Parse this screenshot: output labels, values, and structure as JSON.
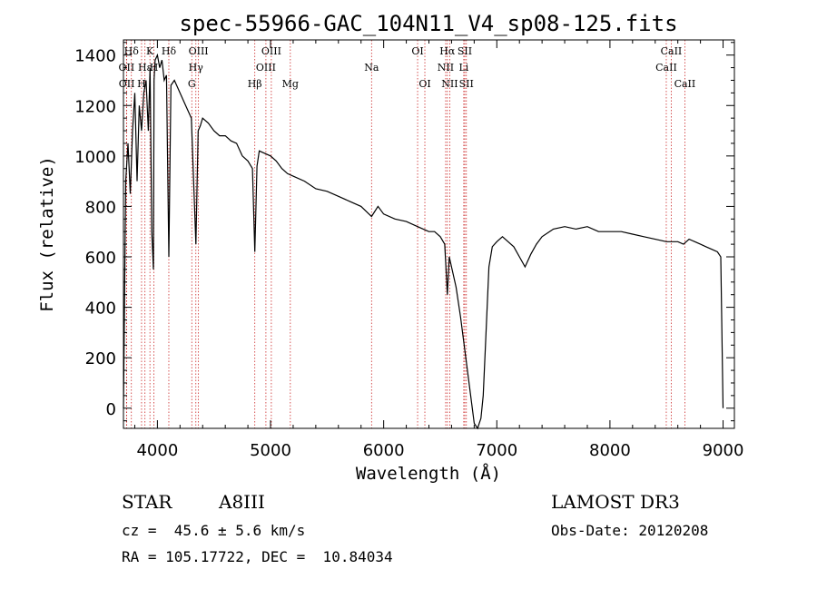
{
  "chart_data": {
    "type": "line",
    "title": "spec-55966-GAC_104N11_V4_sp08-125.fits",
    "xlabel": "Wavelength (Å)",
    "ylabel": "Flux (relative)",
    "xlim": [
      3700,
      9100
    ],
    "ylim": [
      -80,
      1460
    ],
    "xticks": [
      4000,
      5000,
      6000,
      7000,
      8000,
      9000
    ],
    "yticks": [
      0,
      200,
      400,
      600,
      800,
      1000,
      1200,
      1400
    ],
    "ytick_labels": [
      "0",
      "200",
      "400",
      "600",
      "800",
      "1000",
      "1200",
      "1400"
    ],
    "series": [
      {
        "name": "flux",
        "color": "#000000",
        "x": [
          3700,
          3720,
          3740,
          3760,
          3780,
          3800,
          3820,
          3840,
          3860,
          3880,
          3900,
          3920,
          3935,
          3950,
          3965,
          3970,
          3980,
          4000,
          4020,
          4040,
          4060,
          4080,
          4101,
          4120,
          4150,
          4180,
          4200,
          4250,
          4300,
          4340,
          4360,
          4380,
          4400,
          4450,
          4500,
          4550,
          4600,
          4650,
          4700,
          4750,
          4800,
          4840,
          4861,
          4880,
          4900,
          4950,
          5000,
          5050,
          5100,
          5150,
          5200,
          5300,
          5400,
          5500,
          5600,
          5700,
          5800,
          5893,
          5950,
          6000,
          6100,
          6200,
          6300,
          6400,
          6450,
          6500,
          6540,
          6563,
          6580,
          6600,
          6640,
          6680,
          6720,
          6760,
          6800,
          6830,
          6860,
          6880,
          6900,
          6930,
          6960,
          7000,
          7050,
          7100,
          7150,
          7200,
          7250,
          7300,
          7350,
          7400,
          7500,
          7600,
          7700,
          7800,
          7900,
          8000,
          8100,
          8200,
          8300,
          8400,
          8500,
          8600,
          8650,
          8700,
          8750,
          8800,
          8850,
          8900,
          8950,
          8980,
          9000
        ],
        "y": [
          0,
          900,
          1050,
          850,
          1100,
          1250,
          900,
          1200,
          1100,
          1250,
          1300,
          1100,
          1350,
          700,
          550,
          1300,
          1380,
          1400,
          1350,
          1380,
          1300,
          1320,
          600,
          1280,
          1300,
          1270,
          1250,
          1200,
          1150,
          650,
          1100,
          1120,
          1150,
          1130,
          1100,
          1080,
          1080,
          1060,
          1050,
          1000,
          980,
          950,
          620,
          960,
          1020,
          1010,
          1000,
          980,
          950,
          930,
          920,
          900,
          870,
          860,
          840,
          820,
          800,
          760,
          800,
          770,
          750,
          740,
          720,
          700,
          700,
          680,
          650,
          450,
          600,
          560,
          480,
          360,
          220,
          80,
          -60,
          -80,
          -40,
          50,
          250,
          560,
          640,
          660,
          680,
          660,
          640,
          600,
          560,
          610,
          650,
          680,
          710,
          720,
          710,
          720,
          700,
          700,
          700,
          690,
          680,
          670,
          660,
          660,
          650,
          670,
          660,
          650,
          640,
          630,
          620,
          600,
          0
        ]
      }
    ],
    "line_markers": [
      {
        "label": "Hδ",
        "wavelength": 3770,
        "row": 1
      },
      {
        "label": "OII",
        "wavelength": 3727,
        "row": 2
      },
      {
        "label": "OII",
        "wavelength": 3729,
        "row": 3
      },
      {
        "label": "K",
        "wavelength": 3934,
        "row": 1
      },
      {
        "label": "Hε",
        "wavelength": 3890,
        "row": 2
      },
      {
        "label": "H",
        "wavelength": 3860,
        "row": 3
      },
      {
        "label": "Hδ",
        "wavelength": 4101,
        "row": 1
      },
      {
        "label": "H",
        "wavelength": 3969,
        "row": 2
      },
      {
        "label": "OIII",
        "wavelength": 4363,
        "row": 1
      },
      {
        "label": "Hγ",
        "wavelength": 4340,
        "row": 2
      },
      {
        "label": "G",
        "wavelength": 4304,
        "row": 3
      },
      {
        "label": "Hβ",
        "wavelength": 4861,
        "row": 3
      },
      {
        "label": "OIII",
        "wavelength": 5007,
        "row": 1
      },
      {
        "label": "OIII",
        "wavelength": 4959,
        "row": 2
      },
      {
        "label": "Mg",
        "wavelength": 5175,
        "row": 3
      },
      {
        "label": "Na",
        "wavelength": 5893,
        "row": 2
      },
      {
        "label": "OI",
        "wavelength": 6300,
        "row": 1
      },
      {
        "label": "OI",
        "wavelength": 6364,
        "row": 3
      },
      {
        "label": "Hα",
        "wavelength": 6563,
        "row": 1
      },
      {
        "label": "NII",
        "wavelength": 6548,
        "row": 2
      },
      {
        "label": "NII",
        "wavelength": 6584,
        "row": 3
      },
      {
        "label": "SII",
        "wavelength": 6717,
        "row": 1
      },
      {
        "label": "Li",
        "wavelength": 6708,
        "row": 2
      },
      {
        "label": "SII",
        "wavelength": 6731,
        "row": 3
      },
      {
        "label": "CaII",
        "wavelength": 8542,
        "row": 1
      },
      {
        "label": "CaII",
        "wavelength": 8498,
        "row": 2
      },
      {
        "label": "CaII",
        "wavelength": 8662,
        "row": 3
      }
    ],
    "line_marker_color": "#cc2a2a"
  },
  "info": {
    "object_class": "STAR",
    "subclass": "A8III",
    "redshift": "cz =  45.6 ± 5.6 km/s",
    "coords": "RA = 105.17722, DEC =  10.84034",
    "survey": "LAMOST DR3",
    "obs_date": "Obs-Date: 20120208"
  }
}
